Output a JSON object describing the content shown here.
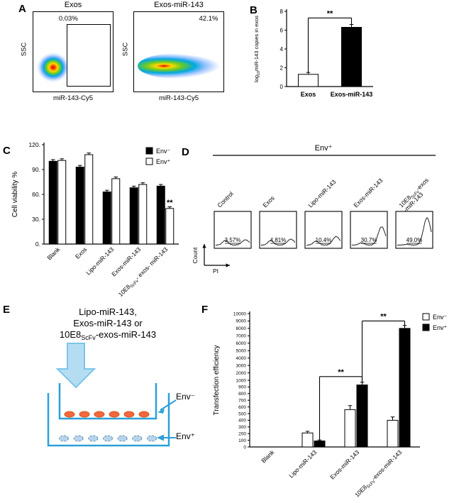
{
  "figure": {
    "background": "#ffffff",
    "panel_labels": {
      "A": "A",
      "B": "B",
      "C": "C",
      "D": "D",
      "E": "E",
      "F": "F"
    }
  },
  "colors": {
    "diagram_blue": "#2b9fd8",
    "arrow_fill": "#b5ddf2",
    "cell_orange": "#f0683c",
    "cell_blue": "#b8d4ea",
    "bar_black": "#000000",
    "bar_white": "#ffffff"
  },
  "panel_a": {
    "plots": [
      {
        "title": "Exos",
        "percent": "0.03%",
        "xlabel": "miR-143-Cy5",
        "ylabel": "SSC"
      },
      {
        "title": "Exos-miR-143",
        "percent": "42.1%",
        "xlabel": "miR-143-Cy5",
        "ylabel": "SSC"
      }
    ]
  },
  "panel_e": {
    "line1": "Lipo-miR-143,",
    "line2": "Exos-miR-143 or",
    "line3_prefix": "10E8",
    "line3_sub": "ScFv",
    "line3_suffix": "-exos-miR-143",
    "top_label": "Env⁻",
    "bottom_label": "Env⁺"
  },
  "chart_data": [
    {
      "panel": "B",
      "type": "bar",
      "categories": [
        "Exos",
        "Exos-miR-143"
      ],
      "values": [
        1.3,
        6.3
      ],
      "errors": [
        0.2,
        0.3
      ],
      "bar_colors": [
        "#ffffff",
        "#000000"
      ],
      "ylabel": "log~10~miR-143 copies in exos",
      "ylim": [
        0,
        8
      ],
      "yticks": [
        {
          "v": 0,
          "label": "0"
        },
        {
          "v": 2,
          "label": "2"
        },
        {
          "v": 4,
          "label": "4"
        },
        {
          "v": 6,
          "label": "6"
        },
        {
          "v": 8,
          "label": "8"
        }
      ],
      "significance": [
        {
          "x1_cat": 0,
          "x1_ser": 0,
          "x2_cat": 1,
          "x2_ser": 0,
          "y": 7.3,
          "label": "**"
        }
      ]
    },
    {
      "panel": "C",
      "type": "grouped-bar",
      "categories": [
        "Blank",
        "Exos",
        "Lipo-miR-143",
        "Exos-miR-143",
        "10E8~ScFv~- exos- miR-143"
      ],
      "series": [
        {
          "name": "Env⁻",
          "color": "#000000",
          "values": [
            100,
            93,
            63,
            68,
            70
          ],
          "errors": [
            2,
            2,
            2,
            2,
            2
          ]
        },
        {
          "name": "Env⁺",
          "color": "#ffffff",
          "values": [
            101,
            108,
            79,
            72,
            43
          ],
          "errors": [
            2,
            2,
            2,
            2,
            2
          ]
        }
      ],
      "ylabel": "Cell viability %",
      "ylim": [
        0,
        120
      ],
      "yticks": [
        {
          "v": 0,
          "label": "0."
        },
        {
          "v": 30,
          "label": "30."
        },
        {
          "v": 60,
          "label": "60."
        },
        {
          "v": 90,
          "label": "90."
        },
        {
          "v": 120,
          "label": "120."
        }
      ],
      "legend_position": "top-right",
      "star_above": [
        {
          "cat": 4,
          "series": 1,
          "label": "**"
        }
      ]
    },
    {
      "panel": "D",
      "type": "flow-histogram-row",
      "header": "Env⁺",
      "categories": [
        "Control",
        "Exos",
        "Lipo-miR-143",
        "Exos-miR-143",
        "10E8~ScFv~-exos\n-miR-143"
      ],
      "values": [
        3.57,
        4.81,
        10.4,
        30.7,
        49.0
      ],
      "percent_labels": [
        "3.57%",
        "4.81%",
        "10.4%",
        "30.7%",
        "49.0%"
      ],
      "xlabel": "PI",
      "ylabel": "Count"
    },
    {
      "panel": "F",
      "type": "grouped-bar",
      "axis_note": "broken axis: 0-1000 by 100 in lower half, 1000-10000 by 1000 in upper half",
      "categories": [
        "Blank",
        "Lipo-miR-143",
        "Exos-miR-143",
        "10E8~ScFv~-exos-miR-143"
      ],
      "series": [
        {
          "name": "Env⁻",
          "color": "#ffffff",
          "values": [
            0,
            210,
            560,
            400
          ],
          "errors": [
            0,
            25,
            60,
            50
          ]
        },
        {
          "name": "Env⁺",
          "color": "#000000",
          "values": [
            0,
            90,
            930,
            8000
          ],
          "errors": [
            0,
            15,
            40,
            400
          ]
        }
      ],
      "ylabel": "Transfection efficiency",
      "ylim": [
        0,
        10000
      ],
      "yticks": [
        {
          "v": 0,
          "label": "0"
        },
        {
          "v": 100,
          "label": "100"
        },
        {
          "v": 200,
          "label": "200"
        },
        {
          "v": 300,
          "label": "300"
        },
        {
          "v": 400,
          "label": "400"
        },
        {
          "v": 500,
          "label": "500"
        },
        {
          "v": 600,
          "label": "600"
        },
        {
          "v": 700,
          "label": "700"
        },
        {
          "v": 800,
          "label": "800"
        },
        {
          "v": 900,
          "label": "900"
        },
        {
          "v": 1000,
          "label": "1000"
        },
        {
          "v": 2000,
          "label": "2000"
        },
        {
          "v": 3000,
          "label": "3000"
        },
        {
          "v": 4000,
          "label": "4000"
        },
        {
          "v": 5000,
          "label": "5000"
        },
        {
          "v": 6000,
          "label": "6000"
        },
        {
          "v": 7000,
          "label": "7000"
        },
        {
          "v": 8000,
          "label": "8000"
        },
        {
          "v": 9000,
          "label": "9000"
        },
        {
          "v": 10000,
          "label": "10000"
        }
      ],
      "legend_position": "top-right",
      "significance": [
        {
          "x1_cat": 1,
          "x1_ser": 1,
          "x2_cat": 2,
          "x2_ser": 1,
          "y": 1500,
          "label": "**"
        },
        {
          "x1_cat": 2,
          "x1_ser": 1,
          "x2_cat": 3,
          "x2_ser": 1,
          "y": 9000,
          "label": "**"
        }
      ]
    }
  ]
}
